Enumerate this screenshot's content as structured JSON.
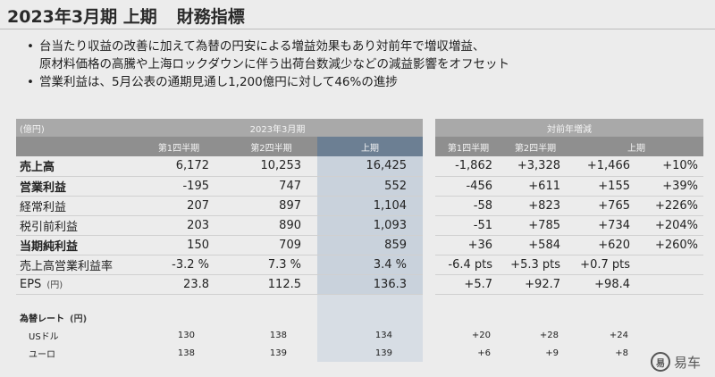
{
  "title": {
    "main": "2023年3月期 上期",
    "sub": "財務指標"
  },
  "bullets": [
    {
      "line1": "台当たり収益の改善に加えて為替の円安による増益効果もあり対前年で増収増益、",
      "line2": "原材料価格の高騰や上海ロックダウンに伴う出荷台数減少などの減益影響をオフセット"
    },
    {
      "line1": "営業利益は、5月公表の通期見通し1,200億円に対して46%の進捗",
      "line2": ""
    }
  ],
  "left_table": {
    "unit_label": "(億円)",
    "group_label": "2023年3月期",
    "columns": [
      "第1四半期",
      "第2四半期",
      "上期"
    ],
    "rows": [
      {
        "label": "売上高",
        "bold": true,
        "unit": "",
        "values": [
          "6,172",
          "10,253",
          "16,425"
        ]
      },
      {
        "label": "営業利益",
        "bold": true,
        "unit": "",
        "values": [
          "-195",
          "747",
          "552"
        ]
      },
      {
        "label": "経常利益",
        "bold": false,
        "unit": "",
        "values": [
          "207",
          "897",
          "1,104"
        ]
      },
      {
        "label": "税引前利益",
        "bold": false,
        "unit": "",
        "values": [
          "203",
          "890",
          "1,093"
        ]
      },
      {
        "label": "当期純利益",
        "bold": true,
        "unit": "",
        "values": [
          "150",
          "709",
          "859"
        ]
      },
      {
        "label": "売上高営業利益率",
        "bold": false,
        "unit": "",
        "values": [
          "-3.2 %",
          "7.3 %",
          "3.4 %"
        ]
      },
      {
        "label": "EPS",
        "bold": false,
        "unit": "(円)",
        "values": [
          "23.8",
          "112.5",
          "136.3"
        ]
      }
    ],
    "fx_label": "為替レート",
    "fx_unit": "(円)",
    "fx_rows": [
      {
        "label": "USドル",
        "values": [
          "130",
          "138",
          "134"
        ]
      },
      {
        "label": "ユーロ",
        "values": [
          "138",
          "139",
          "139"
        ]
      }
    ]
  },
  "right_table": {
    "group_label": "対前年増減",
    "columns": [
      "第1四半期",
      "第2四半期",
      "上期"
    ],
    "rows": [
      [
        "-1,862",
        "+3,328",
        "+1,466",
        "+10%"
      ],
      [
        "-456",
        "+611",
        "+155",
        "+39%"
      ],
      [
        "-58",
        "+823",
        "+765",
        "+226%"
      ],
      [
        "-51",
        "+785",
        "+734",
        "+204%"
      ],
      [
        "+36",
        "+584",
        "+620",
        "+260%"
      ],
      [
        "-6.4 pts",
        "+5.3 pts",
        "+0.7 pts",
        ""
      ],
      [
        "+5.7",
        "+92.7",
        "+98.4",
        ""
      ]
    ],
    "fx_rows": [
      [
        "+20",
        "+28",
        "+24"
      ],
      [
        "+6",
        "+9",
        "+8"
      ]
    ]
  },
  "watermark": {
    "logo": "易",
    "text": "易车"
  }
}
